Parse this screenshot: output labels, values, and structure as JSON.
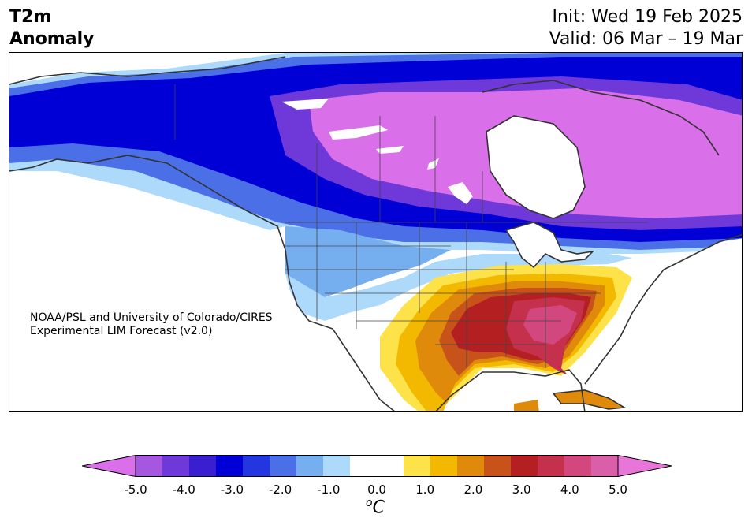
{
  "title": {
    "line1": "T2m",
    "line2": "Anomaly"
  },
  "subtitle": {
    "init": "Init: Wed 19 Feb 2025",
    "valid": "Valid: 06 Mar – 19 Mar"
  },
  "credit": {
    "line1": "NOAA/PSL and University of Colorado/CIRES",
    "line2": "Experimental LIM Forecast (v2.0)"
  },
  "colorbar": {
    "ticks": [
      "-5.0",
      "-4.0",
      "-3.0",
      "-2.0",
      "-1.0",
      "0.0",
      "1.0",
      "2.0",
      "3.0",
      "4.0",
      "5.0"
    ],
    "unit_sup": "o",
    "unit_main": "C",
    "colors": [
      "#d96fe9",
      "#a557e0",
      "#6f38d9",
      "#3a1fd0",
      "#0000d6",
      "#2336e0",
      "#4a6fe6",
      "#76aff0",
      "#add9fb",
      "#ffffff",
      "#ffffff",
      "#fde24a",
      "#f3b800",
      "#df8a0a",
      "#c8531a",
      "#b41f22",
      "#c5304c",
      "#d2477e",
      "#da5fa9",
      "#e776d8"
    ]
  },
  "map": {
    "palette": {
      "neg5": "#d96fe9",
      "neg4": "#6f38d9",
      "neg3": "#0000d6",
      "neg2": "#4a6fe6",
      "neg1": "#76aff0",
      "neg05": "#add9fb",
      "pos05": "#fde24a",
      "pos1": "#f3b800",
      "pos15": "#df8a0a",
      "pos2": "#c8531a",
      "pos25": "#b41f22",
      "pos3": "#c5304c",
      "pos35": "#d2477e"
    }
  }
}
